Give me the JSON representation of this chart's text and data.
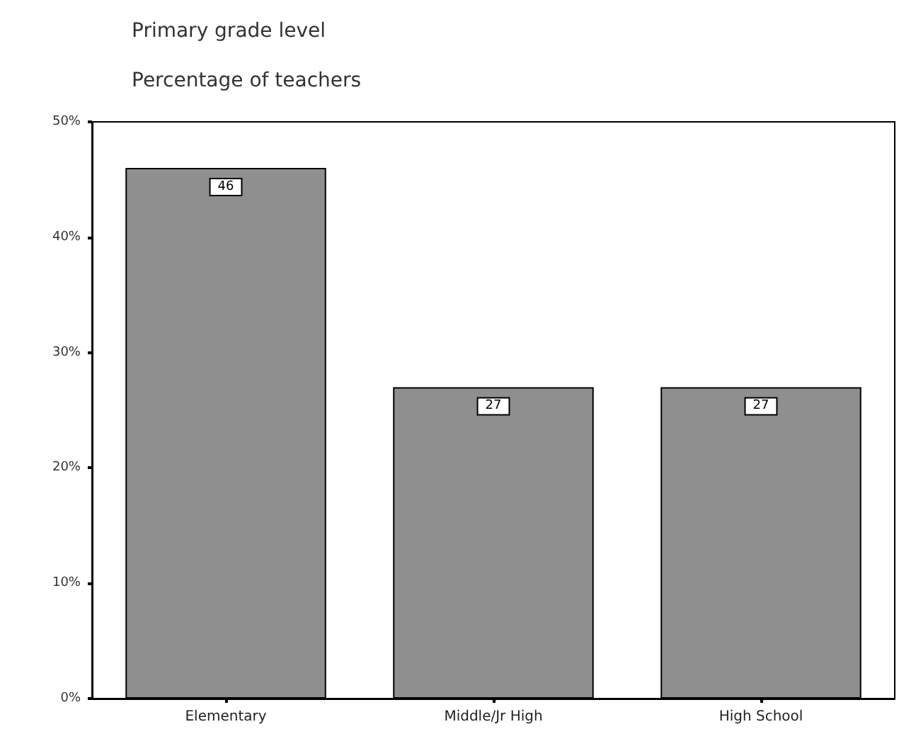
{
  "chart_data": {
    "type": "bar",
    "title": "Primary grade level",
    "ylabel": "Percentage of teachers",
    "categories": [
      "Elementary",
      "Middle/Jr High",
      "High School"
    ],
    "values": [
      46,
      27,
      27
    ],
    "color": "#8f8f8f",
    "ylim": [
      0,
      50
    ],
    "yticks": [
      {
        "value": 0,
        "label": "0%"
      },
      {
        "value": 10,
        "label": "10%"
      },
      {
        "value": 20,
        "label": "20%"
      },
      {
        "value": 30,
        "label": "30%"
      },
      {
        "value": 40,
        "label": "40%"
      },
      {
        "value": 50,
        "label": "50%"
      }
    ],
    "data_labels": true,
    "grid": false
  }
}
